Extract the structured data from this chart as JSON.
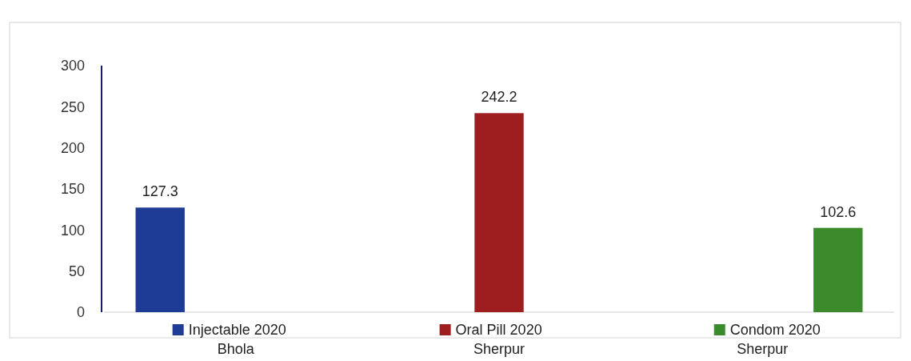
{
  "chart_data": {
    "type": "bar",
    "categories": [
      "Bhola",
      "Sherpur",
      "Sherpur"
    ],
    "series": [
      {
        "name": "Injectable 2020",
        "color": "#1e3c96",
        "values": [
          127.3,
          null,
          null
        ]
      },
      {
        "name": "Oral Pill 2020",
        "color": "#9e1d1f",
        "values": [
          null,
          242.2,
          null
        ]
      },
      {
        "name": "Condom 2020",
        "color": "#3b8b2c",
        "values": [
          null,
          null,
          102.6
        ]
      }
    ],
    "ylim": [
      0,
      300
    ],
    "yticks": [
      0,
      50,
      100,
      150,
      200,
      250,
      300
    ],
    "data_labels": true,
    "legend": "bottom"
  }
}
